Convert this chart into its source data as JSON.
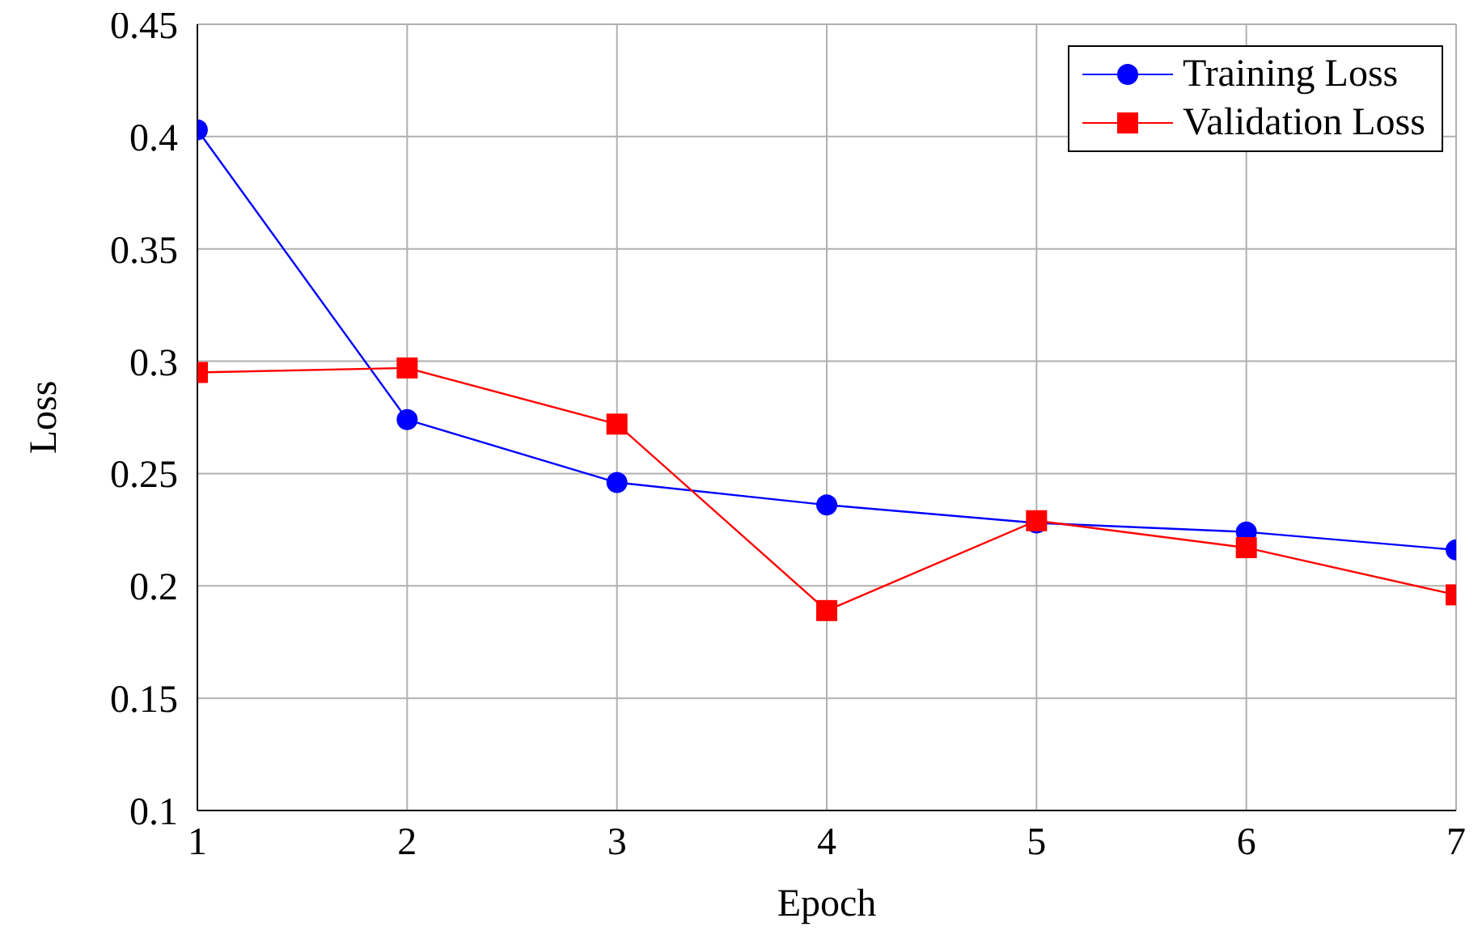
{
  "chart_data": {
    "type": "line",
    "xlabel": "Epoch",
    "ylabel": "Loss",
    "x": [
      1,
      2,
      3,
      4,
      5,
      6,
      7
    ],
    "series": [
      {
        "name": "Training Loss",
        "color": "#0000ff",
        "marker": "circle",
        "values": [
          0.403,
          0.274,
          0.246,
          0.236,
          0.228,
          0.224,
          0.216
        ]
      },
      {
        "name": "Validation Loss",
        "color": "#ff0000",
        "marker": "square",
        "values": [
          0.295,
          0.297,
          0.272,
          0.189,
          0.229,
          0.217,
          0.196
        ]
      }
    ],
    "xlim": [
      1,
      7
    ],
    "xticks": [
      1,
      2,
      3,
      4,
      5,
      6,
      7
    ],
    "ylim": [
      0.1,
      0.45
    ],
    "yticks": [
      0.1,
      0.15,
      0.2,
      0.25,
      0.3,
      0.35,
      0.4,
      0.45
    ],
    "grid": true,
    "legend": "top right",
    "line_style": "solid"
  }
}
